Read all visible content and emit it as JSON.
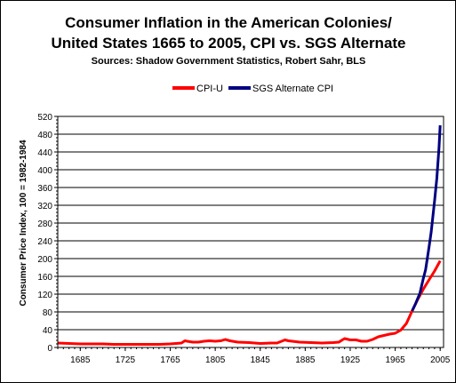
{
  "colors": {
    "cpi_u": "#ff0000",
    "sgs": "#000080",
    "grid": "#000000",
    "background": "#ffffff"
  },
  "chart_data": {
    "type": "line",
    "title": "Consumer Inflation in the American Colonies/",
    "title_line2": "United States 1665 to 2005, CPI vs. SGS Alternate",
    "subtitle": "Sources: Shadow Government Statistics, Robert Sahr, BLS",
    "xlabel": "",
    "ylabel": "Consumer Price Index, 100 = 1982-1984",
    "xlim": [
      1665,
      2008
    ],
    "ylim": [
      0,
      520
    ],
    "grid": true,
    "legend_position": "top",
    "x_tick_labels": [
      "1685",
      "1725",
      "1765",
      "1805",
      "1845",
      "1885",
      "1925",
      "1965",
      "2005"
    ],
    "y_tick_labels": [
      "0",
      "40",
      "80",
      "120",
      "160",
      "200",
      "240",
      "280",
      "320",
      "360",
      "400",
      "440",
      "480",
      "520"
    ],
    "series": [
      {
        "name": "CPI-U",
        "x": [
          1665,
          1675,
          1685,
          1695,
          1705,
          1715,
          1725,
          1735,
          1745,
          1755,
          1765,
          1770,
          1775,
          1778,
          1780,
          1785,
          1790,
          1795,
          1800,
          1805,
          1810,
          1814,
          1818,
          1825,
          1835,
          1845,
          1855,
          1860,
          1864,
          1867,
          1870,
          1880,
          1890,
          1900,
          1910,
          1915,
          1918,
          1920,
          1925,
          1930,
          1935,
          1940,
          1945,
          1950,
          1955,
          1960,
          1965,
          1970,
          1975,
          1980,
          1985,
          1990,
          1995,
          2000,
          2005
        ],
        "y": [
          10,
          9,
          8,
          8,
          8,
          7,
          7,
          7,
          7,
          7,
          8,
          9,
          10,
          15,
          14,
          12,
          12,
          14,
          15,
          14,
          15,
          18,
          15,
          12,
          11,
          9,
          10,
          10,
          14,
          17,
          15,
          12,
          11,
          10,
          11,
          12,
          17,
          20,
          17,
          17,
          14,
          14,
          18,
          24,
          27,
          30,
          32,
          39,
          54,
          82,
          108,
          131,
          152,
          172,
          195
        ]
      },
      {
        "name": "SGS Alternate CPI",
        "x": [
          1980,
          1983,
          1985,
          1987,
          1990,
          1992,
          1995,
          1997,
          2000,
          2002,
          2004,
          2005
        ],
        "y": [
          82,
          98,
          110,
          122,
          155,
          175,
          225,
          260,
          330,
          380,
          450,
          500
        ]
      }
    ]
  }
}
